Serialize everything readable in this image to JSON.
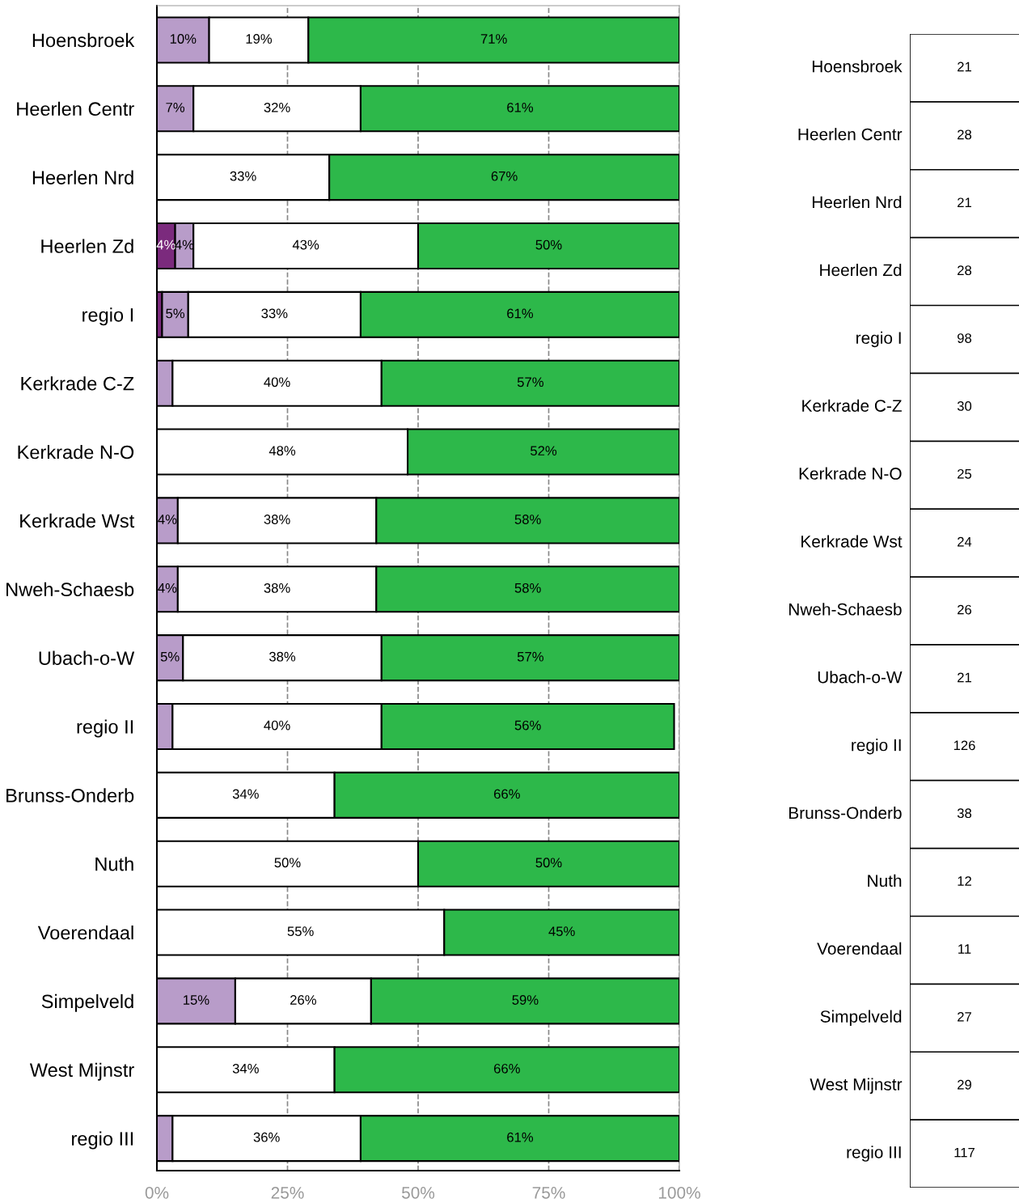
{
  "chart_data": [
    {
      "type": "bar",
      "orientation": "horizontal",
      "stacked": true,
      "grid": "x",
      "legend": false,
      "categories": [
        "Hoensbroek",
        "Heerlen Centr",
        "Heerlen Nrd",
        "Heerlen Zd",
        "regio I",
        "Kerkrade C-Z",
        "Kerkrade N-O",
        "Kerkrade Wst",
        "Nweh-Schaesb",
        "Ubach-o-W",
        "regio II",
        "Brunss-Onderb",
        "Nuth",
        "Voerendaal",
        "Simpelveld",
        "West Mijnstr",
        "regio III"
      ],
      "xlim": [
        0,
        100
      ],
      "xticks": [
        {
          "value": 0,
          "label": "0%"
        },
        {
          "value": 25,
          "label": "25%"
        },
        {
          "value": 50,
          "label": "50%"
        },
        {
          "value": 75,
          "label": "75%"
        },
        {
          "value": 100,
          "label": "100%"
        }
      ],
      "series": [
        {
          "color": "#7b2a7d",
          "values": [
            null,
            null,
            null,
            3.5,
            1,
            null,
            null,
            null,
            null,
            null,
            null,
            null,
            null,
            null,
            null,
            null,
            null
          ],
          "value_labels": [
            null,
            null,
            null,
            "4%",
            null,
            null,
            null,
            null,
            null,
            null,
            null,
            null,
            null,
            null,
            null,
            null,
            null
          ]
        },
        {
          "color": "#b89cc9",
          "values": [
            10,
            7,
            null,
            3.5,
            5,
            3,
            null,
            4,
            4,
            5,
            3,
            null,
            null,
            null,
            15,
            null,
            3
          ],
          "value_labels": [
            "10%",
            "7%",
            null,
            "4%",
            "5%",
            null,
            null,
            "4%",
            "4%",
            "5%",
            null,
            null,
            null,
            null,
            "15%",
            null,
            null
          ]
        },
        {
          "color": "#ffffff",
          "values": [
            19,
            32,
            33,
            43,
            33,
            40,
            48,
            38,
            38,
            38,
            40,
            34,
            50,
            55,
            26,
            34,
            36
          ],
          "value_labels": [
            "19%",
            "32%",
            "33%",
            "43%",
            "33%",
            "40%",
            "48%",
            "38%",
            "38%",
            "38%",
            "40%",
            "34%",
            "50%",
            "55%",
            "26%",
            "34%",
            "36%"
          ]
        },
        {
          "color": "#2db84a",
          "values": [
            71,
            61,
            67,
            50,
            61,
            57,
            52,
            58,
            58,
            57,
            56,
            66,
            50,
            45,
            59,
            66,
            61
          ],
          "value_labels": [
            "71%",
            "61%",
            "67%",
            "50%",
            "61%",
            "57%",
            "52%",
            "58%",
            "58%",
            "57%",
            "56%",
            "66%",
            "50%",
            "45%",
            "59%",
            "66%",
            "61%"
          ]
        }
      ]
    },
    {
      "type": "other",
      "data_labels": true,
      "categories": [
        "Hoensbroek",
        "Heerlen Centr",
        "Heerlen Nrd",
        "Heerlen Zd",
        "regio I",
        "Kerkrade C-Z",
        "Kerkrade N-O",
        "Kerkrade Wst",
        "Nweh-Schaesb",
        "Ubach-o-W",
        "regio II",
        "Brunss-Onderb",
        "Nuth",
        "Voerendaal",
        "Simpelveld",
        "West Mijnstr",
        "regio III"
      ],
      "values": [
        21,
        28,
        21,
        28,
        98,
        30,
        25,
        24,
        26,
        21,
        126,
        38,
        12,
        11,
        27,
        29,
        117
      ]
    }
  ]
}
